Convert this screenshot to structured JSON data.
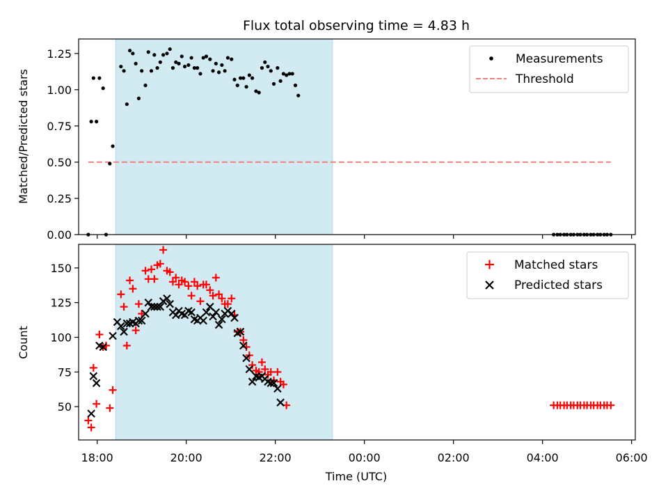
{
  "chart_data": [
    {
      "type": "scatter",
      "title": "Flux total observing time = 4.83 h",
      "xlabel": "",
      "ylabel": "Matched/Predicted stars",
      "xlim": [
        "17:35",
        "06:05"
      ],
      "ylim": [
        0,
        1.35
      ],
      "yticks": [
        "0.00",
        "0.25",
        "0.50",
        "0.75",
        "1.00",
        "1.25"
      ],
      "shaded_region": {
        "start": "18:25",
        "end": "23:17",
        "color": "#add8e6"
      },
      "legend": {
        "position": "top-right",
        "entries": [
          "Measurements",
          "Threshold"
        ]
      },
      "series": [
        {
          "name": "Measurements",
          "marker": "dot",
          "color": "#000000",
          "points": [
            [
              "17:48",
              0.0
            ],
            [
              "17:52",
              0.78
            ],
            [
              "17:55",
              1.08
            ],
            [
              "17:59",
              0.78
            ],
            [
              "18:03",
              1.08
            ],
            [
              "18:08",
              1.01
            ],
            [
              "18:12",
              0.0
            ],
            [
              "18:17",
              0.49
            ],
            [
              "18:21",
              0.61
            ],
            [
              "18:32",
              1.16
            ],
            [
              "18:36",
              1.13
            ],
            [
              "18:40",
              0.9
            ],
            [
              "18:44",
              1.27
            ],
            [
              "18:48",
              1.25
            ],
            [
              "18:52",
              1.18
            ],
            [
              "18:56",
              0.94
            ],
            [
              "19:00",
              1.13
            ],
            [
              "19:05",
              1.03
            ],
            [
              "19:09",
              1.26
            ],
            [
              "19:13",
              1.13
            ],
            [
              "19:17",
              1.24
            ],
            [
              "19:21",
              1.15
            ],
            [
              "19:25",
              1.19
            ],
            [
              "19:29",
              1.24
            ],
            [
              "19:34",
              1.25
            ],
            [
              "19:38",
              1.28
            ],
            [
              "19:42",
              1.15
            ],
            [
              "19:46",
              1.19
            ],
            [
              "19:50",
              1.18
            ],
            [
              "19:54",
              1.23
            ],
            [
              "19:58",
              1.16
            ],
            [
              "20:03",
              1.17
            ],
            [
              "20:07",
              1.22
            ],
            [
              "20:11",
              1.15
            ],
            [
              "20:15",
              1.15
            ],
            [
              "20:19",
              1.11
            ],
            [
              "20:23",
              1.22
            ],
            [
              "20:27",
              1.23
            ],
            [
              "20:32",
              1.21
            ],
            [
              "20:36",
              1.13
            ],
            [
              "20:40",
              1.18
            ],
            [
              "20:44",
              1.12
            ],
            [
              "20:48",
              1.17
            ],
            [
              "20:52",
              1.13
            ],
            [
              "20:56",
              1.22
            ],
            [
              "21:01",
              1.21
            ],
            [
              "21:05",
              1.07
            ],
            [
              "21:09",
              1.03
            ],
            [
              "21:13",
              1.08
            ],
            [
              "21:17",
              1.08
            ],
            [
              "21:21",
              1.02
            ],
            [
              "21:25",
              1.1
            ],
            [
              "21:29",
              1.08
            ],
            [
              "21:34",
              0.99
            ],
            [
              "21:38",
              0.98
            ],
            [
              "21:42",
              1.15
            ],
            [
              "21:46",
              1.19
            ],
            [
              "21:50",
              1.16
            ],
            [
              "21:54",
              1.13
            ],
            [
              "21:58",
              1.04
            ],
            [
              "22:03",
              1.15
            ],
            [
              "22:07",
              1.06
            ],
            [
              "22:11",
              1.11
            ],
            [
              "22:15",
              1.1
            ],
            [
              "22:19",
              1.11
            ],
            [
              "22:23",
              1.11
            ],
            [
              "22:27",
              1.03
            ],
            [
              "22:31",
              0.96
            ],
            [
              "04:15",
              0.0
            ],
            [
              "04:20",
              0.0
            ],
            [
              "04:24",
              0.0
            ],
            [
              "04:29",
              0.0
            ],
            [
              "04:33",
              0.0
            ],
            [
              "04:38",
              0.0
            ],
            [
              "04:42",
              0.0
            ],
            [
              "04:47",
              0.0
            ],
            [
              "04:51",
              0.0
            ],
            [
              "04:56",
              0.0
            ],
            [
              "05:00",
              0.0
            ],
            [
              "05:05",
              0.0
            ],
            [
              "05:09",
              0.0
            ],
            [
              "05:14",
              0.0
            ],
            [
              "05:18",
              0.0
            ],
            [
              "05:23",
              0.0
            ],
            [
              "05:27",
              0.0
            ],
            [
              "05:32",
              0.0
            ]
          ]
        },
        {
          "name": "Threshold",
          "type": "line",
          "style": "dashed",
          "color": "#f08080",
          "points": [
            [
              "17:48",
              0.5
            ],
            [
              "05:32",
              0.5
            ]
          ]
        }
      ]
    },
    {
      "type": "scatter",
      "title": "",
      "xlabel": "Time (UTC)",
      "ylabel": "Count",
      "xlim": [
        "17:35",
        "06:05"
      ],
      "xticks": [
        "18:00",
        "20:00",
        "22:00",
        "00:00",
        "02:00",
        "04:00",
        "06:00"
      ],
      "ylim": [
        26,
        167
      ],
      "yticks": [
        "50",
        "75",
        "100",
        "125",
        "150"
      ],
      "shaded_region": {
        "start": "18:25",
        "end": "23:17",
        "color": "#add8e6"
      },
      "legend": {
        "position": "top-right",
        "entries": [
          "Matched stars",
          "Predicted stars"
        ]
      },
      "series": [
        {
          "name": "Matched stars",
          "marker": "plus",
          "color": "#ff0000",
          "points": [
            [
              "17:48",
              40
            ],
            [
              "17:52",
              35
            ],
            [
              "17:55",
              78
            ],
            [
              "17:59",
              52
            ],
            [
              "18:03",
              102
            ],
            [
              "18:08",
              93
            ],
            [
              "18:12",
              94
            ],
            [
              "18:17",
              49
            ],
            [
              "18:21",
              62
            ],
            [
              "18:32",
              131
            ],
            [
              "18:36",
              122
            ],
            [
              "18:40",
              94
            ],
            [
              "18:44",
              141
            ],
            [
              "18:48",
              135
            ],
            [
              "18:52",
              105
            ],
            [
              "18:56",
              124
            ],
            [
              "19:00",
              117
            ],
            [
              "19:05",
              148
            ],
            [
              "19:09",
              142
            ],
            [
              "19:13",
              149
            ],
            [
              "19:17",
              142
            ],
            [
              "19:21",
              152
            ],
            [
              "19:25",
              153
            ],
            [
              "19:29",
              163
            ],
            [
              "19:34",
              148
            ],
            [
              "19:38",
              147
            ],
            [
              "19:42",
              140
            ],
            [
              "19:46",
              143
            ],
            [
              "19:50",
              138
            ],
            [
              "19:54",
              141
            ],
            [
              "19:58",
              140
            ],
            [
              "20:03",
              137
            ],
            [
              "20:07",
              130
            ],
            [
              "20:11",
              140
            ],
            [
              "20:15",
              137
            ],
            [
              "20:19",
              126
            ],
            [
              "20:23",
              138
            ],
            [
              "20:27",
              138
            ],
            [
              "20:32",
              134
            ],
            [
              "20:36",
              130
            ],
            [
              "20:40",
              143
            ],
            [
              "20:44",
              131
            ],
            [
              "20:48",
              128
            ],
            [
              "20:52",
              124
            ],
            [
              "20:56",
              124
            ],
            [
              "21:01",
              128
            ],
            [
              "21:05",
              116
            ],
            [
              "21:09",
              104
            ],
            [
              "21:13",
              104
            ],
            [
              "21:17",
              98
            ],
            [
              "21:21",
              93
            ],
            [
              "21:25",
              87
            ],
            [
              "21:29",
              80
            ],
            [
              "21:34",
              76
            ],
            [
              "21:38",
              75
            ],
            [
              "21:42",
              82
            ],
            [
              "21:46",
              77
            ],
            [
              "21:50",
              73
            ],
            [
              "21:54",
              75
            ],
            [
              "21:58",
              69
            ],
            [
              "22:03",
              75
            ],
            [
              "22:07",
              68
            ],
            [
              "22:11",
              66
            ],
            [
              "22:15",
              51
            ],
            [
              "04:15",
              51
            ],
            [
              "04:20",
              51
            ],
            [
              "04:24",
              51
            ],
            [
              "04:29",
              51
            ],
            [
              "04:33",
              51
            ],
            [
              "04:38",
              51
            ],
            [
              "04:42",
              51
            ],
            [
              "04:47",
              51
            ],
            [
              "04:51",
              51
            ],
            [
              "04:56",
              51
            ],
            [
              "05:00",
              51
            ],
            [
              "05:05",
              51
            ],
            [
              "05:09",
              51
            ],
            [
              "05:14",
              51
            ],
            [
              "05:18",
              51
            ],
            [
              "05:23",
              51
            ],
            [
              "05:27",
              51
            ],
            [
              "05:32",
              51
            ]
          ]
        },
        {
          "name": "Predicted stars",
          "marker": "x",
          "color": "#000000",
          "points": [
            [
              "17:52",
              45
            ],
            [
              "17:55",
              72
            ],
            [
              "17:59",
              67
            ],
            [
              "18:03",
              94
            ],
            [
              "18:08",
              93
            ],
            [
              "18:21",
              101
            ],
            [
              "18:27",
              111
            ],
            [
              "18:32",
              108
            ],
            [
              "18:36",
              104
            ],
            [
              "18:40",
              110
            ],
            [
              "18:44",
              110
            ],
            [
              "18:48",
              111
            ],
            [
              "18:52",
              110
            ],
            [
              "18:56",
              112
            ],
            [
              "19:00",
              112
            ],
            [
              "19:05",
              117
            ],
            [
              "19:09",
              125
            ],
            [
              "19:13",
              122
            ],
            [
              "19:17",
              122
            ],
            [
              "19:21",
              122
            ],
            [
              "19:25",
              122
            ],
            [
              "19:29",
              126
            ],
            [
              "19:34",
              128
            ],
            [
              "19:38",
              124
            ],
            [
              "19:42",
              118
            ],
            [
              "19:46",
              116
            ],
            [
              "19:50",
              119
            ],
            [
              "19:54",
              117
            ],
            [
              "19:58",
              116
            ],
            [
              "20:03",
              119
            ],
            [
              "20:07",
              118
            ],
            [
              "20:11",
              113
            ],
            [
              "20:15",
              112
            ],
            [
              "20:19",
              114
            ],
            [
              "20:23",
              112
            ],
            [
              "20:27",
              118
            ],
            [
              "20:32",
              122
            ],
            [
              "20:36",
              115
            ],
            [
              "20:40",
              118
            ],
            [
              "20:44",
              109
            ],
            [
              "20:48",
              113
            ],
            [
              "20:52",
              117
            ],
            [
              "20:56",
              119
            ],
            [
              "21:01",
              117
            ],
            [
              "21:05",
              114
            ],
            [
              "21:09",
              103
            ],
            [
              "21:13",
              104
            ],
            [
              "21:17",
              94
            ],
            [
              "21:21",
              85
            ],
            [
              "21:25",
              77
            ],
            [
              "21:29",
              68
            ],
            [
              "21:34",
              72
            ],
            [
              "21:38",
              71
            ],
            [
              "21:42",
              72
            ],
            [
              "21:46",
              70
            ],
            [
              "21:50",
              68
            ],
            [
              "21:54",
              67
            ],
            [
              "21:58",
              67
            ],
            [
              "22:03",
              63
            ],
            [
              "22:07",
              53
            ]
          ]
        }
      ]
    }
  ]
}
